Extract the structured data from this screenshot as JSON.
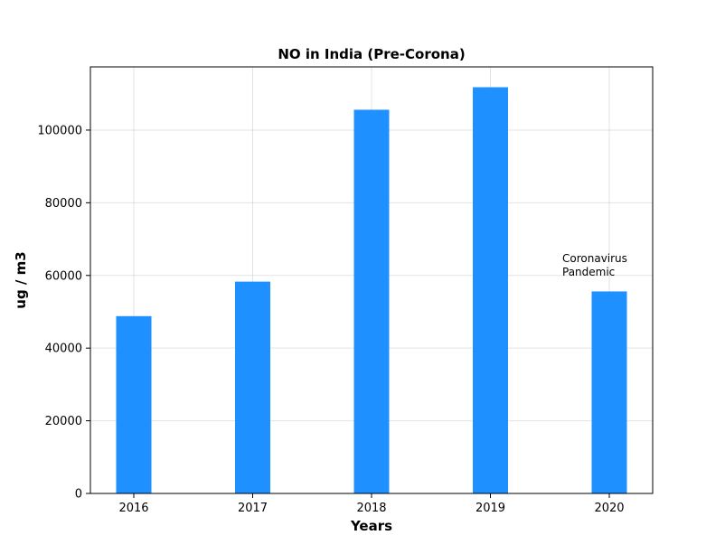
{
  "chart_data": {
    "type": "bar",
    "title": "NO in India (Pre-Corona)",
    "xlabel": "Years",
    "ylabel": "ug / m3",
    "categories": [
      "2016",
      "2017",
      "2018",
      "2019",
      "2020"
    ],
    "values": [
      48800,
      58300,
      105600,
      111800,
      55600
    ],
    "ylim": [
      0,
      117400
    ],
    "yticks": [
      0,
      20000,
      40000,
      60000,
      80000,
      100000
    ],
    "ytick_labels": [
      "0",
      "20000",
      "40000",
      "60000",
      "80000",
      "100000"
    ],
    "grid": true,
    "bar_color": "#1e90ff",
    "annotation": {
      "lines": [
        "Coronavirus",
        "Pandemic"
      ],
      "category": "2020",
      "y": 60000
    }
  }
}
